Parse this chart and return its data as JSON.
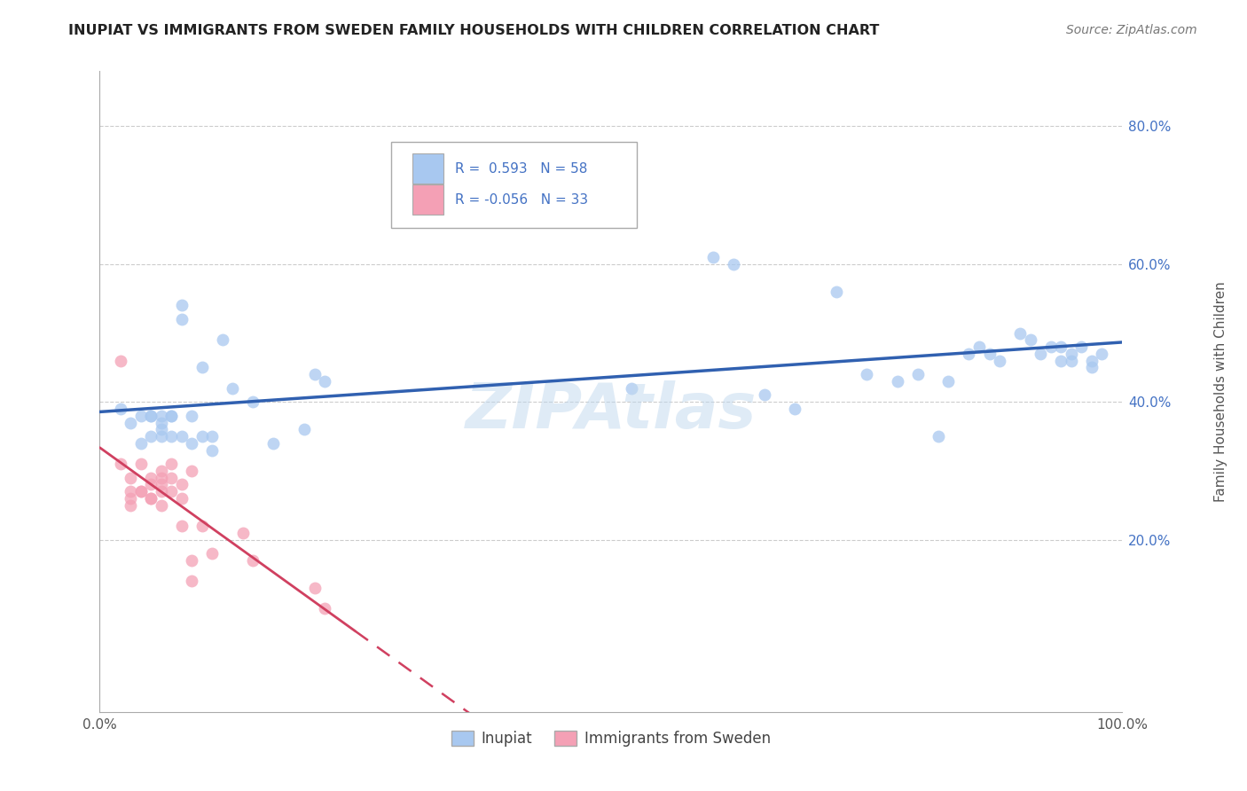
{
  "title": "INUPIAT VS IMMIGRANTS FROM SWEDEN FAMILY HOUSEHOLDS WITH CHILDREN CORRELATION CHART",
  "source": "Source: ZipAtlas.com",
  "ylabel": "Family Households with Children",
  "legend_labels": [
    "Inupiat",
    "Immigrants from Sweden"
  ],
  "r_inupiat": "0.593",
  "n_inupiat": "58",
  "r_sweden": "-0.056",
  "n_sweden": "33",
  "color_inupiat": "#A8C8F0",
  "color_sweden": "#F4A0B5",
  "line_color_inupiat": "#3060B0",
  "line_color_sweden": "#D04060",
  "background_color": "#ffffff",
  "watermark": "ZIPAtlas",
  "xlim": [
    0.0,
    1.0
  ],
  "ylim": [
    -0.05,
    0.88
  ],
  "xticks": [
    0.0,
    0.2,
    0.4,
    0.6,
    0.8,
    1.0
  ],
  "yticks": [
    0.0,
    0.2,
    0.4,
    0.6,
    0.8
  ],
  "xticklabels": [
    "0.0%",
    "",
    "",
    "",
    "",
    "100.0%"
  ],
  "yticklabels": [
    "",
    "20.0%",
    "40.0%",
    "60.0%",
    "80.0%"
  ],
  "inupiat_x": [
    0.02,
    0.03,
    0.04,
    0.04,
    0.05,
    0.05,
    0.05,
    0.06,
    0.06,
    0.06,
    0.06,
    0.07,
    0.07,
    0.07,
    0.08,
    0.08,
    0.08,
    0.09,
    0.09,
    0.1,
    0.1,
    0.11,
    0.11,
    0.12,
    0.13,
    0.15,
    0.17,
    0.2,
    0.21,
    0.22,
    0.5,
    0.52,
    0.6,
    0.62,
    0.65,
    0.68,
    0.72,
    0.75,
    0.78,
    0.8,
    0.82,
    0.83,
    0.85,
    0.86,
    0.87,
    0.88,
    0.9,
    0.91,
    0.92,
    0.93,
    0.94,
    0.94,
    0.95,
    0.95,
    0.96,
    0.97,
    0.97,
    0.98
  ],
  "inupiat_y": [
    0.39,
    0.37,
    0.38,
    0.34,
    0.38,
    0.38,
    0.35,
    0.38,
    0.37,
    0.36,
    0.35,
    0.38,
    0.38,
    0.35,
    0.52,
    0.54,
    0.35,
    0.38,
    0.34,
    0.45,
    0.35,
    0.33,
    0.35,
    0.49,
    0.42,
    0.4,
    0.34,
    0.36,
    0.44,
    0.43,
    0.69,
    0.42,
    0.61,
    0.6,
    0.41,
    0.39,
    0.56,
    0.44,
    0.43,
    0.44,
    0.35,
    0.43,
    0.47,
    0.48,
    0.47,
    0.46,
    0.5,
    0.49,
    0.47,
    0.48,
    0.46,
    0.48,
    0.47,
    0.46,
    0.48,
    0.45,
    0.46,
    0.47
  ],
  "sweden_x": [
    0.02,
    0.02,
    0.03,
    0.03,
    0.03,
    0.03,
    0.04,
    0.04,
    0.04,
    0.05,
    0.05,
    0.05,
    0.05,
    0.06,
    0.06,
    0.06,
    0.06,
    0.06,
    0.07,
    0.07,
    0.07,
    0.08,
    0.08,
    0.08,
    0.09,
    0.09,
    0.09,
    0.1,
    0.11,
    0.14,
    0.15,
    0.21,
    0.22
  ],
  "sweden_y": [
    0.46,
    0.31,
    0.29,
    0.26,
    0.27,
    0.25,
    0.31,
    0.27,
    0.27,
    0.29,
    0.26,
    0.28,
    0.26,
    0.3,
    0.29,
    0.28,
    0.27,
    0.25,
    0.31,
    0.29,
    0.27,
    0.26,
    0.28,
    0.22,
    0.3,
    0.17,
    0.14,
    0.22,
    0.18,
    0.21,
    0.17,
    0.13,
    0.1
  ]
}
